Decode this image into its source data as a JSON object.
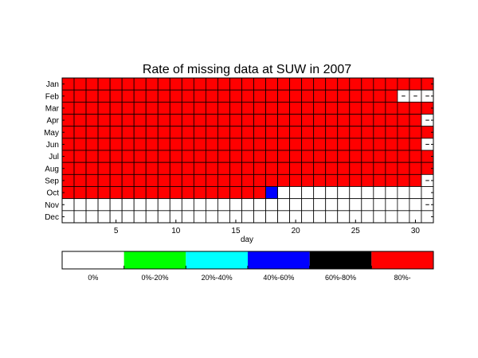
{
  "chart_data": {
    "type": "heatmap",
    "title": "Rate of missing data at SUW in 2007",
    "xlabel": "day",
    "ylabel": "",
    "xticks": [
      5,
      10,
      15,
      20,
      25,
      30
    ],
    "days": 31,
    "months": [
      "Jan",
      "Feb",
      "Mar",
      "Apr",
      "May",
      "Jun",
      "Jul",
      "Aug",
      "Sep",
      "Oct",
      "Nov",
      "Dec"
    ],
    "days_in_month": [
      31,
      28,
      31,
      30,
      31,
      30,
      31,
      31,
      30,
      31,
      30,
      31
    ],
    "legend_position": "bottom",
    "categories": [
      {
        "label": "0%",
        "color": "#ffffff"
      },
      {
        "label": "0%-20%",
        "color": "#00ff00"
      },
      {
        "label": "20%-40%",
        "color": "#00ffff"
      },
      {
        "label": "40%-60%",
        "color": "#0000ff"
      },
      {
        "label": "60%-80%",
        "color": "#000000"
      },
      {
        "label": "80%-",
        "color": "#ff0000"
      }
    ],
    "values": [
      [
        5,
        5,
        5,
        5,
        5,
        5,
        5,
        5,
        5,
        5,
        5,
        5,
        5,
        5,
        5,
        5,
        5,
        5,
        5,
        5,
        5,
        5,
        5,
        5,
        5,
        5,
        5,
        5,
        5,
        5,
        5
      ],
      [
        5,
        5,
        5,
        5,
        5,
        5,
        5,
        5,
        5,
        5,
        5,
        5,
        5,
        5,
        5,
        5,
        5,
        5,
        5,
        5,
        5,
        5,
        5,
        5,
        5,
        5,
        5,
        5,
        0,
        0,
        0
      ],
      [
        5,
        5,
        5,
        5,
        5,
        5,
        5,
        5,
        5,
        5,
        5,
        5,
        5,
        5,
        5,
        5,
        5,
        5,
        5,
        5,
        5,
        5,
        5,
        5,
        5,
        5,
        5,
        5,
        5,
        5,
        5
      ],
      [
        5,
        5,
        5,
        5,
        5,
        5,
        5,
        5,
        5,
        5,
        5,
        5,
        5,
        5,
        5,
        5,
        5,
        5,
        5,
        5,
        5,
        5,
        5,
        5,
        5,
        5,
        5,
        5,
        5,
        5,
        0
      ],
      [
        5,
        5,
        5,
        5,
        5,
        5,
        5,
        5,
        5,
        5,
        5,
        5,
        5,
        5,
        5,
        5,
        5,
        5,
        5,
        5,
        5,
        5,
        5,
        5,
        5,
        5,
        5,
        5,
        5,
        5,
        5
      ],
      [
        5,
        5,
        5,
        5,
        5,
        5,
        5,
        5,
        5,
        5,
        5,
        5,
        5,
        5,
        5,
        5,
        5,
        5,
        5,
        5,
        5,
        5,
        5,
        5,
        5,
        5,
        5,
        5,
        5,
        5,
        0
      ],
      [
        5,
        5,
        5,
        5,
        5,
        5,
        5,
        5,
        5,
        5,
        5,
        5,
        5,
        5,
        5,
        5,
        5,
        5,
        5,
        5,
        5,
        5,
        5,
        5,
        5,
        5,
        5,
        5,
        5,
        5,
        5
      ],
      [
        5,
        5,
        5,
        5,
        5,
        5,
        5,
        5,
        5,
        5,
        5,
        5,
        5,
        5,
        5,
        5,
        5,
        5,
        5,
        5,
        5,
        5,
        5,
        5,
        5,
        5,
        5,
        5,
        5,
        5,
        5
      ],
      [
        5,
        5,
        5,
        5,
        5,
        5,
        5,
        5,
        5,
        5,
        5,
        5,
        5,
        5,
        5,
        5,
        5,
        5,
        5,
        5,
        5,
        5,
        5,
        5,
        5,
        5,
        5,
        5,
        5,
        5,
        0
      ],
      [
        5,
        5,
        5,
        5,
        5,
        5,
        5,
        5,
        5,
        5,
        5,
        5,
        5,
        5,
        5,
        5,
        5,
        3,
        0,
        0,
        0,
        0,
        0,
        0,
        0,
        0,
        0,
        0,
        0,
        0,
        0
      ],
      [
        0,
        0,
        0,
        0,
        0,
        0,
        0,
        0,
        0,
        0,
        0,
        0,
        0,
        0,
        0,
        0,
        0,
        0,
        0,
        0,
        0,
        0,
        0,
        0,
        0,
        0,
        0,
        0,
        0,
        0,
        0
      ],
      [
        0,
        0,
        0,
        0,
        0,
        0,
        0,
        0,
        0,
        0,
        0,
        0,
        0,
        0,
        0,
        0,
        0,
        0,
        0,
        0,
        0,
        0,
        0,
        0,
        0,
        0,
        0,
        0,
        0,
        0,
        0
      ]
    ]
  }
}
